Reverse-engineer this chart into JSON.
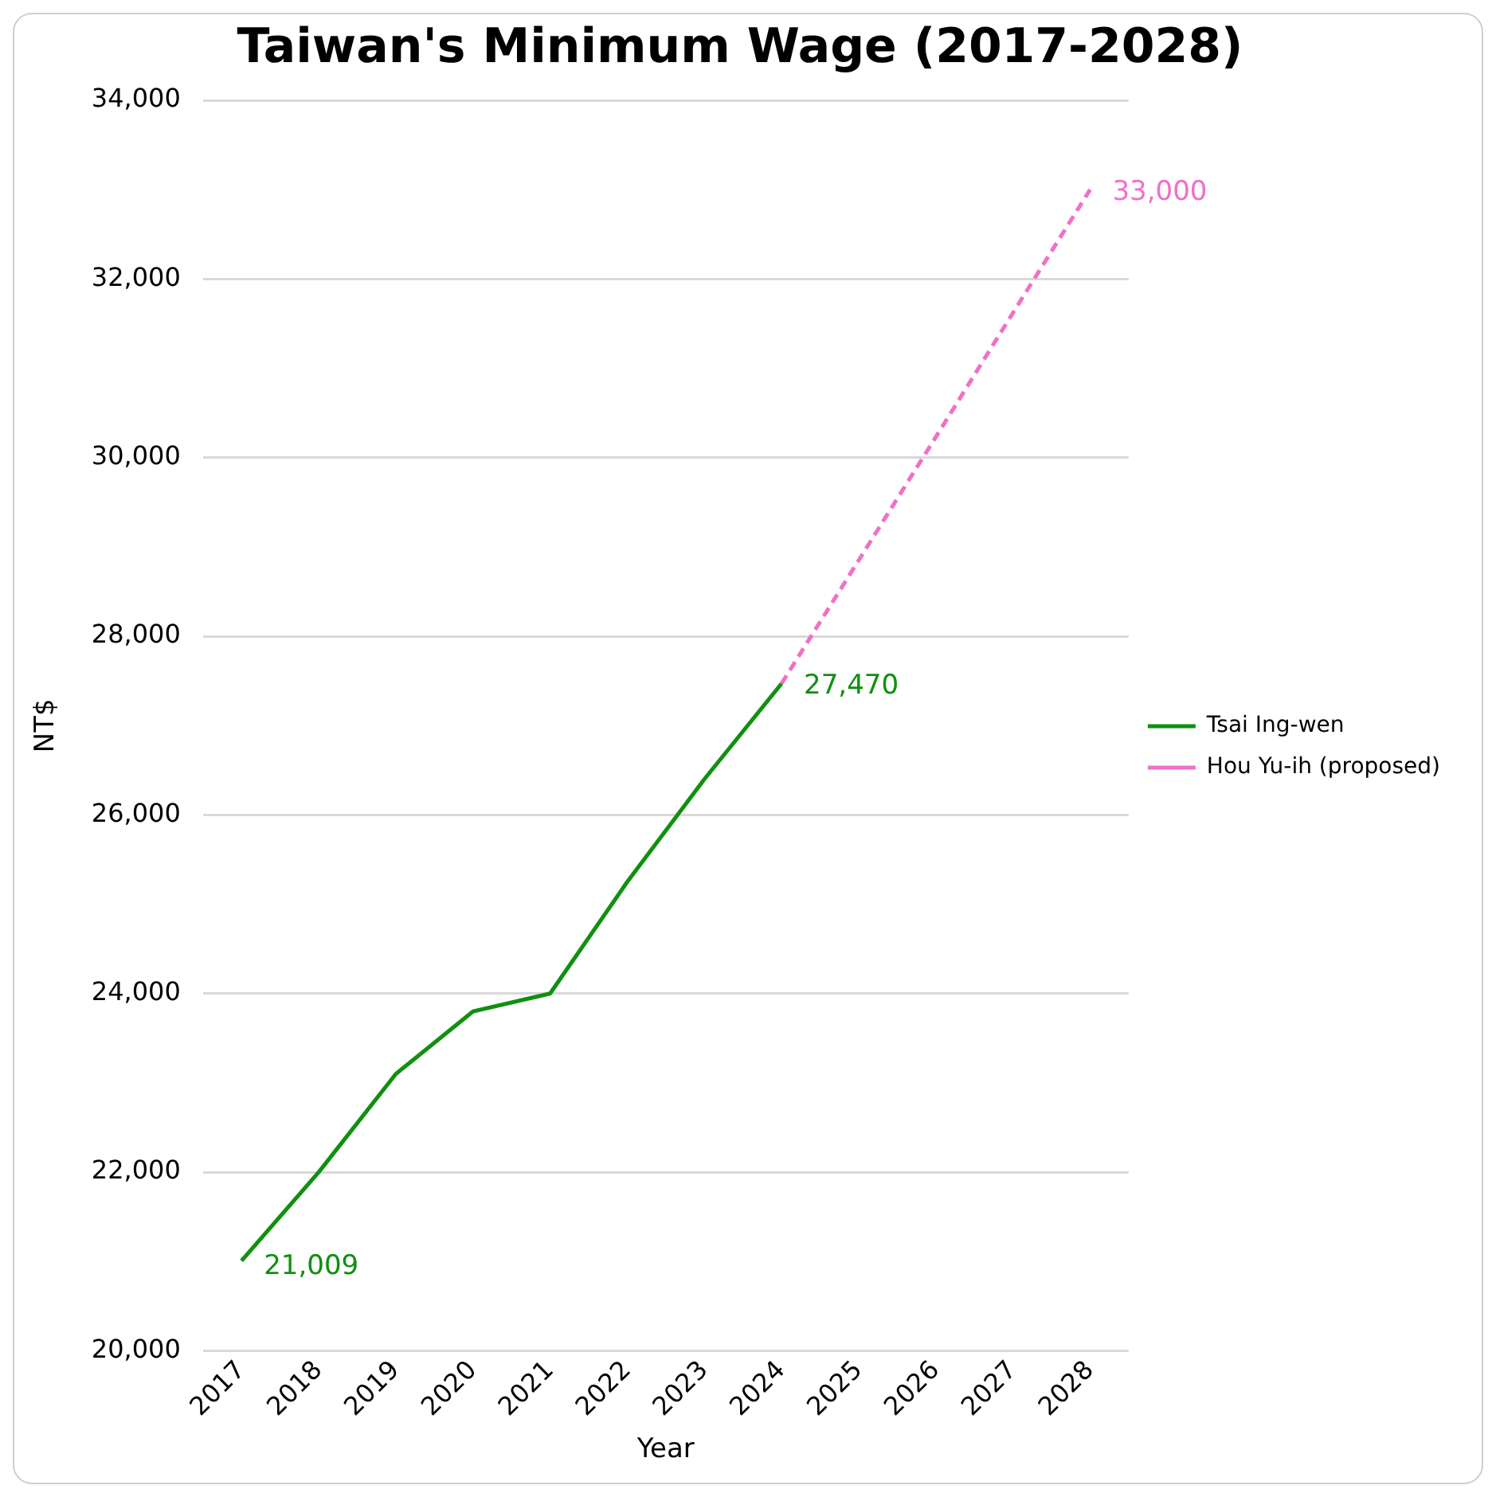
{
  "chart_data": {
    "type": "line",
    "title": "Taiwan's Minimum Wage (2017-2028)",
    "xlabel": "Year",
    "ylabel": "NT$",
    "categories": [
      "2017",
      "2018",
      "2019",
      "2020",
      "2021",
      "2022",
      "2023",
      "2024",
      "2025",
      "2026",
      "2027",
      "2028"
    ],
    "series": [
      {
        "name": "Tsai Ing-wen",
        "color": "#109010",
        "line_style": "solid",
        "values": [
          21009,
          22000,
          23100,
          23800,
          24000,
          25250,
          26400,
          27470,
          null,
          null,
          null,
          null
        ],
        "value_labels": [
          "21,009",
          null,
          null,
          null,
          null,
          null,
          null,
          "27,470",
          null,
          null,
          null,
          null
        ]
      },
      {
        "name": "Hou Yu-ih (proposed)",
        "color": "#f070c8",
        "line_style": "dashed",
        "values": [
          null,
          null,
          null,
          null,
          null,
          null,
          null,
          27470,
          28850,
          30230,
          31620,
          33000
        ],
        "value_labels": [
          null,
          null,
          null,
          null,
          null,
          null,
          null,
          null,
          null,
          null,
          null,
          "33,000"
        ]
      }
    ],
    "ylim": [
      20000,
      34000
    ],
    "yticks": [
      {
        "value": 20000,
        "label": "20,000"
      },
      {
        "value": 22000,
        "label": "22,000"
      },
      {
        "value": 24000,
        "label": "24,000"
      },
      {
        "value": 26000,
        "label": "26,000"
      },
      {
        "value": 28000,
        "label": "28,000"
      },
      {
        "value": 30000,
        "label": "30,000"
      },
      {
        "value": 32000,
        "label": "32,000"
      },
      {
        "value": 34000,
        "label": "34,000"
      }
    ],
    "grid": "y",
    "legend": "right",
    "marker": "none"
  }
}
